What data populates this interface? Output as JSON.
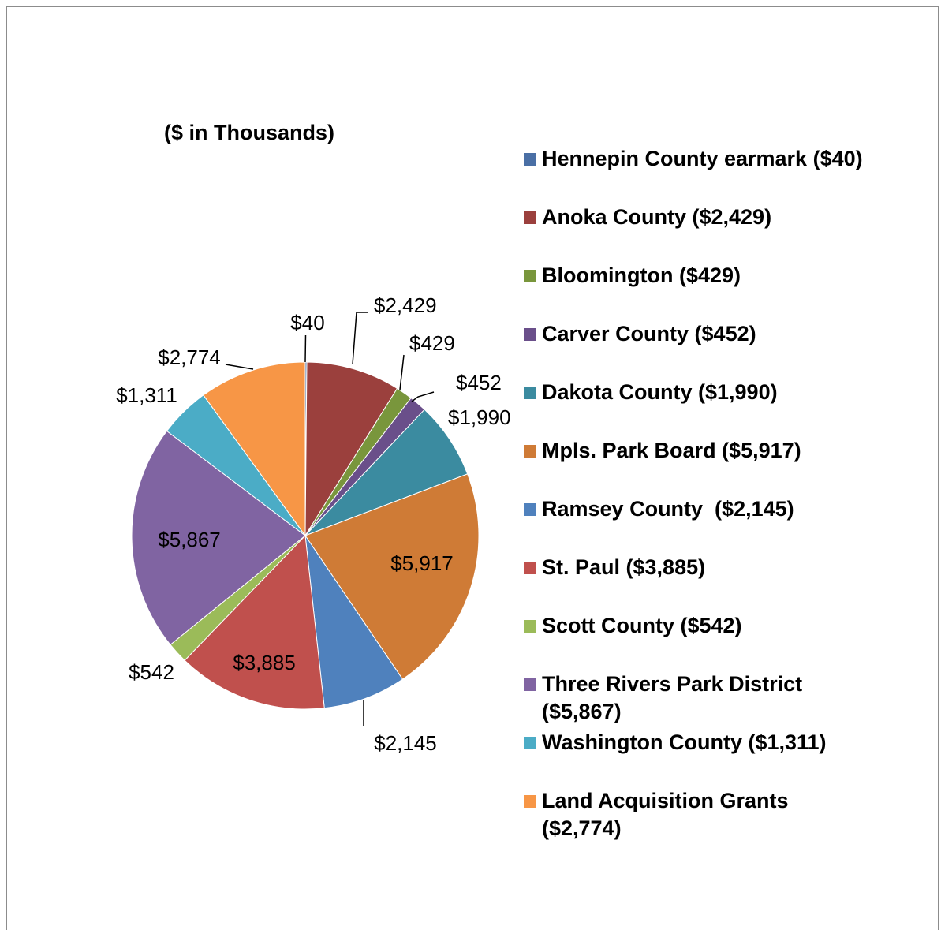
{
  "chart_data": {
    "type": "pie",
    "subtitle": "($  in Thousands)",
    "slices": [
      {
        "name": "Hennepin County earmark",
        "legend": "Hennepin County earmark ($40)",
        "value": 40,
        "label": "$40",
        "color": "#4a6fa5"
      },
      {
        "name": "Anoka County",
        "legend": "Anoka County ($2,429)",
        "value": 2429,
        "label": "$2,429",
        "color": "#9b403d"
      },
      {
        "name": "Bloomington",
        "legend": "Bloomington ($429)",
        "value": 429,
        "label": "$429",
        "color": "#79963c"
      },
      {
        "name": "Carver County",
        "legend": "Carver County ($452)",
        "value": 452,
        "label": "$452",
        "color": "#6a4f8a"
      },
      {
        "name": "Dakota County",
        "legend": "Dakota County ($1,990)",
        "value": 1990,
        "label": "$1,990",
        "color": "#3b8ba0"
      },
      {
        "name": "Mpls. Park Board",
        "legend": "Mpls. Park Board ($5,917)",
        "value": 5917,
        "label": "$5,917",
        "color": "#cf7b36"
      },
      {
        "name": "Ramsey County",
        "legend": "Ramsey County  ($2,145)",
        "value": 2145,
        "label": "$2,145",
        "color": "#4f81bd"
      },
      {
        "name": "St. Paul",
        "legend": "St. Paul ($3,885)",
        "value": 3885,
        "label": "$3,885",
        "color": "#c0504d"
      },
      {
        "name": "Scott County",
        "legend": "Scott County ($542)",
        "value": 542,
        "label": "$542",
        "color": "#9bbb59"
      },
      {
        "name": "Three Rivers Park District",
        "legend": "Three Rivers Park District ($5,867)",
        "value": 5867,
        "label": "$5,867",
        "color": "#8064a2"
      },
      {
        "name": "Washington County",
        "legend": "Washington County ($1,311)",
        "value": 1311,
        "label": "$1,311",
        "color": "#4bacc6"
      },
      {
        "name": "Land Acquisition Grants",
        "legend": "Land Acquisition Grants ($2,774)",
        "value": 2774,
        "label": "$2,774",
        "color": "#f79646"
      }
    ],
    "legend_position": "right"
  }
}
